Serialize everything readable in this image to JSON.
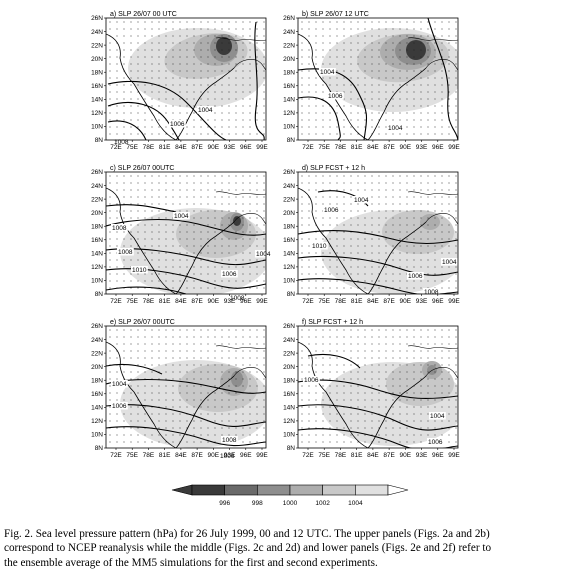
{
  "panels": [
    {
      "id": "a",
      "title": "a) SLP 26/07 00 UTC",
      "contour_labels": [
        "1004",
        "1006",
        "1008"
      ]
    },
    {
      "id": "b",
      "title": "b) SLP 26/07 12 UTC",
      "contour_labels": [
        "1004",
        "1006",
        "1004"
      ]
    },
    {
      "id": "c",
      "title": "c) SLP 26/07 00UTC",
      "contour_labels": [
        "1008",
        "1004",
        "1008",
        "1010",
        "1004",
        "1006",
        "1008"
      ]
    },
    {
      "id": "d",
      "title": "d) SLP FCST + 12 h",
      "contour_labels": [
        "1004",
        "1006",
        "1010",
        "1004",
        "1006",
        "1008"
      ]
    },
    {
      "id": "e",
      "title": "e) SLP 26/07 00UTC",
      "contour_labels": [
        "1004",
        "1006",
        "1008",
        "1006"
      ]
    },
    {
      "id": "f",
      "title": "f) SLP FCST + 12 h",
      "contour_labels": [
        "1006",
        "1004",
        "1006"
      ]
    }
  ],
  "axes": {
    "lat_ticks": [
      "26N",
      "24N",
      "22N",
      "20N",
      "18N",
      "16N",
      "14N",
      "12N",
      "10N",
      "8N"
    ],
    "lon_ticks": [
      "72E",
      "75E",
      "78E",
      "81E",
      "84E",
      "87E",
      "90E",
      "93E",
      "96E",
      "99E"
    ]
  },
  "colorbar": {
    "labels": [
      "996",
      "998",
      "1000",
      "1002",
      "1004"
    ],
    "colors": [
      "#3a3a3a",
      "#6a6a6a",
      "#8e8e8e",
      "#adadad",
      "#c8c8c8",
      "#e0e0e0"
    ],
    "units": "hPa"
  },
  "caption": {
    "line1": "Fig. 2.  Sea level pressure pattern (hPa) for 26 July 1999, 00 and 12 UTC. The upper panels (Figs. 2a and 2b)",
    "line2": "correspond to NCEP reanalysis while the middle (Figs. 2c and 2d) and lower panels (Figs. 2e and 2f) refer to",
    "line3": "the ensemble average of the MM5 simulations for the first and second experiments."
  }
}
